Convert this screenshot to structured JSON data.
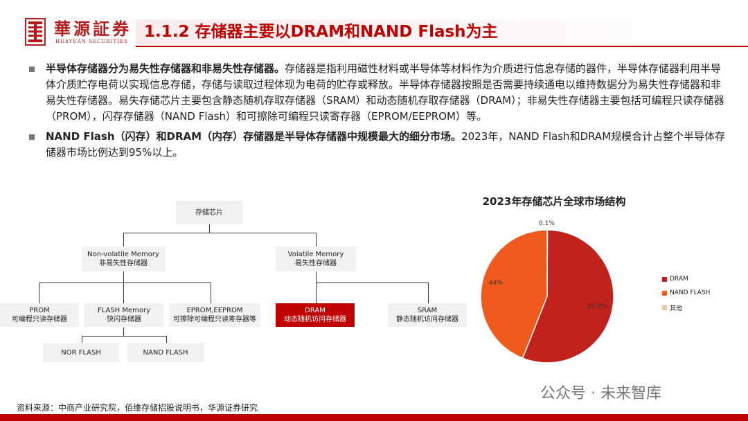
{
  "header": {
    "brand": "華源証券",
    "brand_sub": "HUAYUAN SECURITIES",
    "title": "1.1.2 存储器主要以DRAM和NAND Flash为主"
  },
  "bullets": [
    {
      "bold": "半导体存储器分为易失性存储器和非易失性存储器。",
      "text": "存储器是指利用磁性材料或半导体等材料作为介质进行信息存储的器件，半导体存储器利用半导体介质贮存电荷以实现信息存储，存储与读取过程体现为电荷的贮存或释放。半导体存储器按照是否需要持续通电以维持数据分为易失性存储器和非易失性存储器。易失存储芯片主要包含静态随机存取存储器（SRAM）和动态随机存取存储器（DRAM）；非易失性存储器主要包括可编程只读存储器（PROM），闪存存储器（NAND Flash）和可擦除可编程只读寄存器（EPROM/EEPROM）等。"
    },
    {
      "bold": "NAND Flash（闪存）和DRAM（内存）存储器是半导体存储器中规模最大的细分市场。",
      "text": "2023年，NAND Flash和DRAM规模合计占整个半导体存储器市场比例达到95%以上。"
    }
  ],
  "tree": {
    "root": "存储芯片",
    "nonvolatile": {
      "en": "Non-volatile Memory",
      "zh": "非易失性存储器"
    },
    "volatile": {
      "en": "Volatile Memory",
      "zh": "易失性存储器"
    },
    "prom": {
      "en": "PROM",
      "zh": "可编程只读存储器"
    },
    "flash": {
      "en": "FLASH Memory",
      "zh": "快闪存储器"
    },
    "eprom": {
      "en": "EPROM,EEPROM",
      "zh": "可擦除可编程只读寄存器等"
    },
    "dram": {
      "en": "DRAM",
      "zh": "动态随机访问存储器"
    },
    "sram": {
      "en": "SRAM",
      "zh": "静态随机访问存储器"
    },
    "nor": "NOR FLASH",
    "nand": "NAND FLASH"
  },
  "chart_data": {
    "type": "pie",
    "title": "2023年存储芯片全球市场结构",
    "labels": [
      "DRAM",
      "NAND FLASH",
      "其他"
    ],
    "values": [
      55.9,
      44,
      0.1
    ],
    "value_labels": [
      "55.9%",
      "44%",
      "0.1%"
    ],
    "colors": [
      "#c0211a",
      "#f05a1c",
      "#e9c8a4"
    ],
    "legend_position": "right"
  },
  "source": "资料来源：中商产业研究院，佰维存储招股说明书，华源证券研究",
  "watermark": "公众号 · 未来智库"
}
